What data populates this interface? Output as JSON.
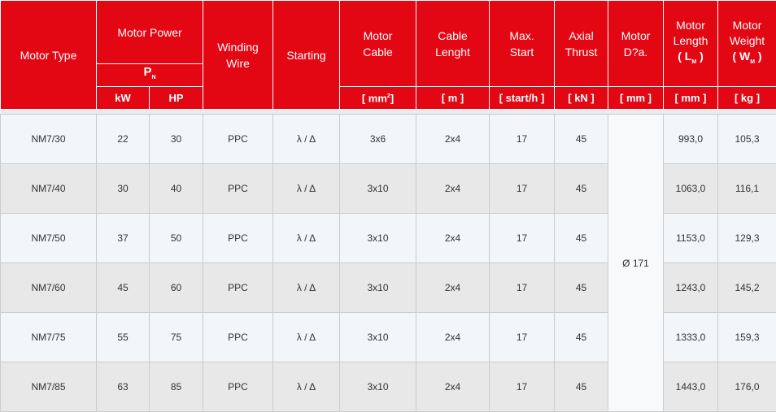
{
  "header": {
    "motor_type": "Motor Type",
    "motor_power": "Motor Power",
    "pn": "P",
    "pn_sub": "N",
    "kw": "kW",
    "hp": "HP",
    "winding_1": "Winding",
    "winding_2": "Wire",
    "starting": "Starting",
    "cable_1": "Motor",
    "cable_2": "Cable",
    "cable_unit": "[ mm",
    "cable_unit_sup": "2",
    "cable_unit_end": "]",
    "length_1": "Cable",
    "length_2": "Lenght",
    "length_unit": "[ m ]",
    "start_1": "Max.",
    "start_2": "Start",
    "start_unit": "[ start/h ]",
    "thrust_1": "Axial",
    "thrust_2": "Thrust",
    "thrust_unit": "[ kN ]",
    "dia_1": "Motor",
    "dia_2": "D?a.",
    "dia_unit": "[ mm ]",
    "mlen_1": "Motor",
    "mlen_2": "Length",
    "mlen_3": "( L",
    "mlen_sub": "M",
    "mlen_end": " )",
    "mlen_unit": "[ mm ]",
    "mw_1": "Motor",
    "mw_2": "Weight",
    "mw_3": "( W",
    "mw_sub": "M",
    "mw_end": " )",
    "mw_unit": "[ kg ]"
  },
  "diameter": "Ø 171",
  "rows": [
    {
      "type": "NM7/30",
      "kw": "22",
      "hp": "30",
      "wire": "PPC",
      "start": "λ / Δ",
      "cable": "3x6",
      "len": "2x4",
      "max": "17",
      "thrust": "45",
      "mlen": "993,0",
      "mw": "105,3"
    },
    {
      "type": "NM7/40",
      "kw": "30",
      "hp": "40",
      "wire": "PPC",
      "start": "λ / Δ",
      "cable": "3x10",
      "len": "2x4",
      "max": "17",
      "thrust": "45",
      "mlen": "1063,0",
      "mw": "116,1"
    },
    {
      "type": "NM7/50",
      "kw": "37",
      "hp": "50",
      "wire": "PPC",
      "start": "λ / Δ",
      "cable": "3x10",
      "len": "2x4",
      "max": "17",
      "thrust": "45",
      "mlen": "1153,0",
      "mw": "129,3"
    },
    {
      "type": "NM7/60",
      "kw": "45",
      "hp": "60",
      "wire": "PPC",
      "start": "λ / Δ",
      "cable": "3x10",
      "len": "2x4",
      "max": "17",
      "thrust": "45",
      "mlen": "1243,0",
      "mw": "145,2"
    },
    {
      "type": "NM7/75",
      "kw": "55",
      "hp": "75",
      "wire": "PPC",
      "start": "λ / Δ",
      "cable": "3x10",
      "len": "2x4",
      "max": "17",
      "thrust": "45",
      "mlen": "1333,0",
      "mw": "159,3"
    },
    {
      "type": "NM7/85",
      "kw": "63",
      "hp": "85",
      "wire": "PPC",
      "start": "λ / Δ",
      "cable": "3x10",
      "len": "2x4",
      "max": "17",
      "thrust": "45",
      "mlen": "1443,0",
      "mw": "176,0"
    }
  ],
  "colors": {
    "header": "#e30613",
    "row_alt": "#e8e8e8"
  }
}
